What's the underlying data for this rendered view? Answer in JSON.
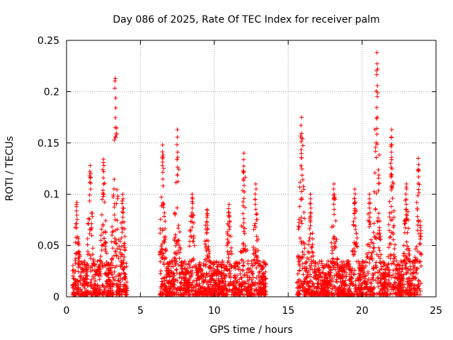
{
  "chart_data": {
    "type": "scatter",
    "title": "Day 086 of 2025, Rate Of TEC Index for receiver palm",
    "xlabel": "GPS time / hours",
    "ylabel": "ROTI / TECUs",
    "xlim": [
      0,
      25
    ],
    "ylim": [
      0,
      0.25
    ],
    "x_ticks": [
      0,
      5,
      10,
      15,
      20,
      25
    ],
    "x_tick_labels": [
      "0",
      "5",
      "10",
      "15",
      "20",
      "25"
    ],
    "y_ticks": [
      0,
      0.05,
      0.1,
      0.15,
      0.2,
      0.25
    ],
    "y_tick_labels": [
      "0",
      "0.05",
      "0.1",
      "0.15",
      "0.2",
      "0.25"
    ],
    "grid": true,
    "marker": "+",
    "series": [
      {
        "name": "ROTI",
        "color": "#ff0000",
        "segments": [
          {
            "start": 0.4,
            "end": 4.1,
            "max": 0.213,
            "peaks": [
              [
                0.7,
                0.092
              ],
              [
                1.6,
                0.128
              ],
              [
                2.5,
                0.134
              ],
              [
                3.3,
                0.213
              ],
              [
                3.8,
                0.1
              ]
            ]
          },
          {
            "start": 6.3,
            "end": 13.5,
            "max": 0.163,
            "peaks": [
              [
                6.5,
                0.148
              ],
              [
                7.5,
                0.163
              ],
              [
                8.5,
                0.1
              ],
              [
                9.5,
                0.085
              ],
              [
                11.0,
                0.09
              ],
              [
                12.0,
                0.14
              ],
              [
                12.8,
                0.11
              ]
            ]
          },
          {
            "start": 15.6,
            "end": 24.0,
            "max": 0.238,
            "peaks": [
              [
                15.9,
                0.175
              ],
              [
                16.5,
                0.1
              ],
              [
                18.1,
                0.11
              ],
              [
                19.5,
                0.105
              ],
              [
                20.5,
                0.1
              ],
              [
                21.0,
                0.238
              ],
              [
                22.0,
                0.163
              ],
              [
                23.0,
                0.11
              ],
              [
                23.8,
                0.135
              ]
            ]
          }
        ]
      }
    ]
  }
}
